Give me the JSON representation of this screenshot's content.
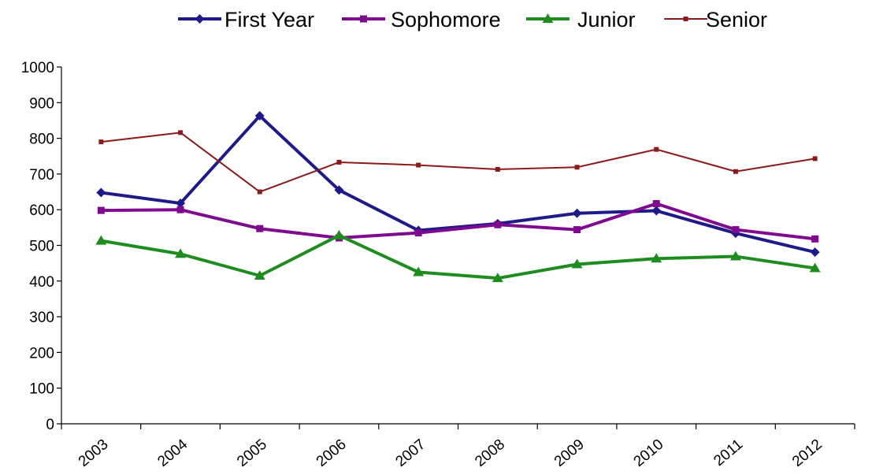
{
  "chart_data": {
    "type": "line",
    "categories": [
      "2003",
      "2004",
      "2005",
      "2006",
      "2007",
      "2008",
      "2009",
      "2010",
      "2011",
      "2012"
    ],
    "series": [
      {
        "name": "First Year",
        "color": "#1f1a8a",
        "marker": "diamond",
        "values": [
          648,
          618,
          863,
          655,
          542,
          561,
          590,
          597,
          534,
          481
        ]
      },
      {
        "name": "Sophomore",
        "color": "#800a8f",
        "marker": "square",
        "values": [
          598,
          600,
          547,
          521,
          535,
          558,
          544,
          617,
          544,
          518
        ]
      },
      {
        "name": "Junior",
        "color": "#1e8c1e",
        "marker": "triangle",
        "values": [
          513,
          476,
          415,
          528,
          425,
          408,
          447,
          463,
          469,
          436
        ]
      },
      {
        "name": "Senior",
        "color": "#8b1a1a",
        "marker": "small-square",
        "values": [
          790,
          816,
          650,
          733,
          725,
          713,
          719,
          769,
          707,
          743
        ]
      }
    ],
    "ylim": [
      0,
      1000
    ],
    "yticks": [
      0,
      100,
      200,
      300,
      400,
      500,
      600,
      700,
      800,
      900,
      1000
    ],
    "legend_position": "top-center",
    "grid": false,
    "title": "",
    "xlabel": "",
    "ylabel": ""
  }
}
